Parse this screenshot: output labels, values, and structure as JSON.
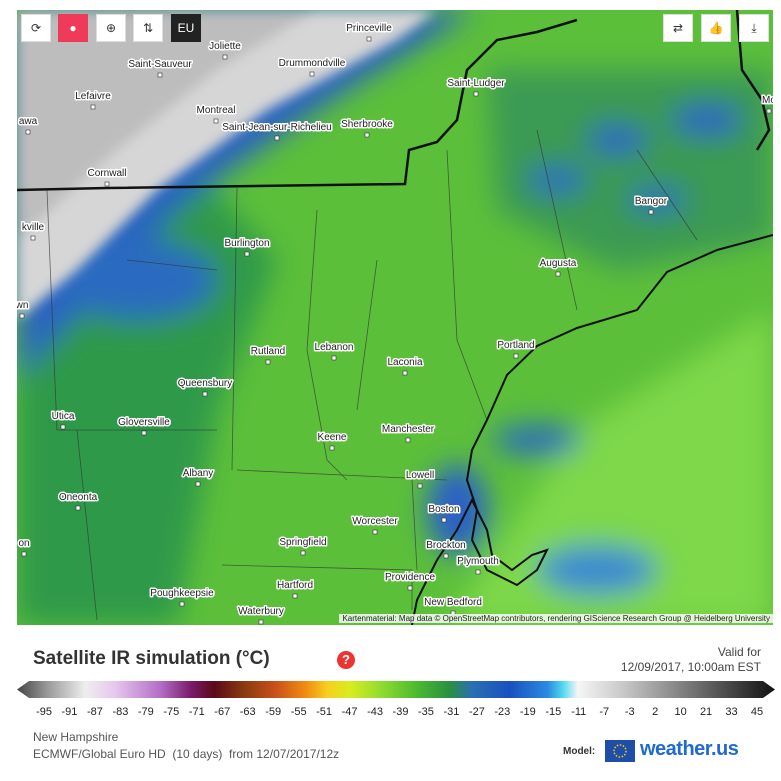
{
  "toolbar": {
    "region_button": "EU"
  },
  "map": {
    "cities": [
      "Princeville",
      "Joliette",
      "Saint-Sauveur",
      "Drummondville",
      "Lefaivre",
      "Montreal",
      "Saint-Ludger",
      "Saint-Jean-sur-Richelieu",
      "Sherbrooke",
      "Cornwall",
      "Bangor",
      "Burlington",
      "Augusta",
      "Portland",
      "Rutland",
      "Lebanon",
      "Laconia",
      "Queensbury",
      "Utica",
      "Gloversville",
      "Keene",
      "Manchester",
      "Albany",
      "Lowell",
      "Oneonta",
      "Boston",
      "Worcester",
      "Springfield",
      "Brockton",
      "Plymouth",
      "Providence",
      "Hartford",
      "Poughkeepsie",
      "New Bedford",
      "Waterbury",
      "awa",
      "kville",
      "wn",
      "on",
      "Mo"
    ],
    "attribution": "Kartenmaterial: Map data © OpenStreetMap contributors, rendering GIScience Research Group @ Heidelberg University"
  },
  "legend": {
    "title": "Satellite IR simulation (°C)",
    "valid_label": "Valid for",
    "valid_time": "12/09/2017, 10:00am EST",
    "ticks": [
      -95,
      -91,
      -87,
      -83,
      -79,
      -75,
      -71,
      -67,
      -63,
      -59,
      -55,
      -51,
      -47,
      -43,
      -39,
      -35,
      -31,
      -27,
      -23,
      -19,
      -15,
      -11,
      -7,
      -3,
      2,
      10,
      21,
      33,
      45
    ],
    "region": "New Hampshire",
    "model_run": "ECMWF/Global Euro HD  (10 days)  from 12/07/2017/12z",
    "model_label": "Model:",
    "brand": "weather.us"
  }
}
